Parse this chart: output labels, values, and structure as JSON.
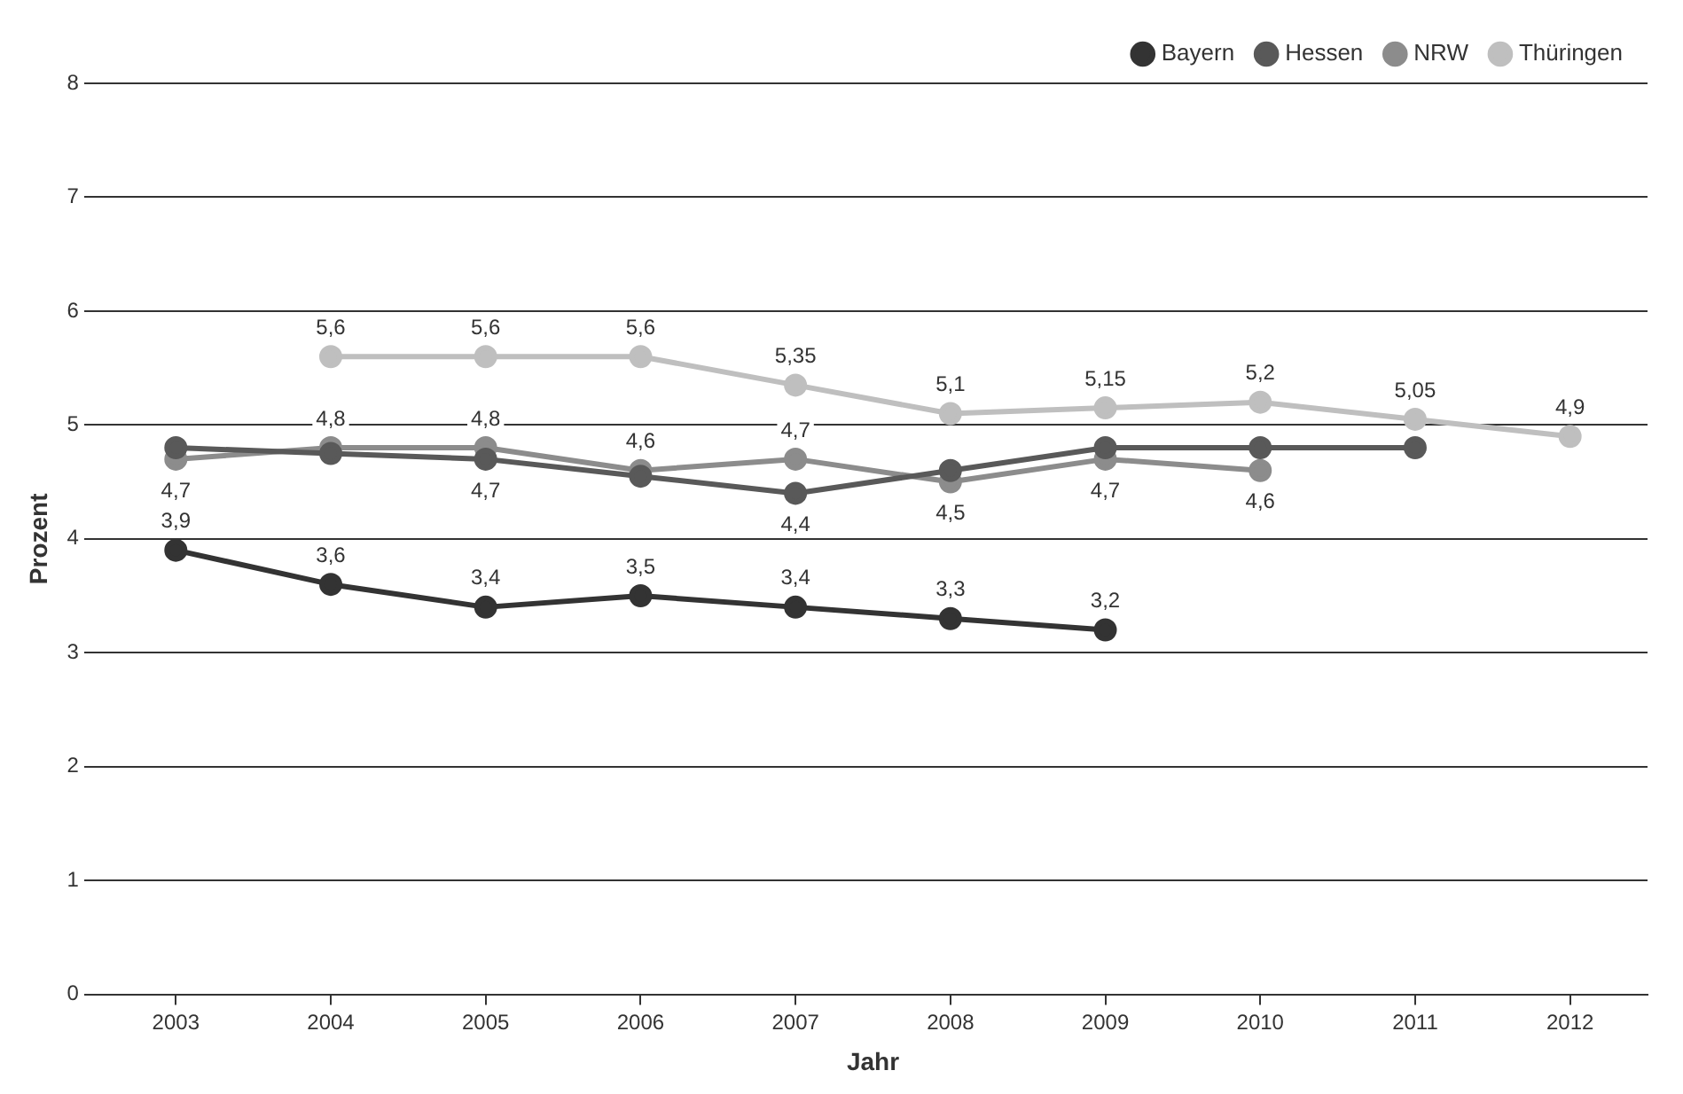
{
  "chart_data": {
    "type": "line",
    "xlabel": "Jahr",
    "ylabel": "Prozent",
    "categories": [
      "2003",
      "2004",
      "2005",
      "2006",
      "2007",
      "2008",
      "2009",
      "2010",
      "2011",
      "2012"
    ],
    "ylim": [
      0,
      8
    ],
    "yticks": [
      0,
      1,
      2,
      3,
      4,
      5,
      6,
      7,
      8
    ],
    "grid": "y",
    "legend": "top right",
    "marker": "circle",
    "line_style": "solid",
    "series": [
      {
        "name": "Bayern",
        "color": "#333333",
        "values": [
          3.9,
          3.6,
          3.4,
          3.5,
          3.4,
          3.3,
          3.2,
          null,
          null,
          null
        ],
        "value_labels": [
          "3,9",
          "3,6",
          "3,4",
          "3,5",
          "3,4",
          "3,3",
          "3,2",
          null,
          null,
          null
        ]
      },
      {
        "name": "Hessen",
        "color": "#595959",
        "values": [
          4.8,
          4.75,
          4.7,
          4.55,
          4.4,
          4.6,
          4.8,
          4.8,
          4.8,
          null
        ],
        "value_labels": [
          null,
          null,
          "4,7",
          null,
          "4,4",
          null,
          null,
          null,
          null,
          null
        ]
      },
      {
        "name": "NRW",
        "color": "#8c8c8c",
        "values": [
          4.7,
          4.8,
          4.8,
          4.6,
          4.7,
          4.5,
          4.7,
          4.6,
          null,
          null
        ],
        "value_labels": [
          "4,7",
          "4,8",
          "4,8",
          "4,6",
          "4,7",
          "4,5",
          "4,7",
          "4,6",
          null,
          null
        ]
      },
      {
        "name": "Thüringen",
        "color": "#bfbfbf",
        "values": [
          null,
          5.6,
          5.6,
          5.6,
          5.35,
          5.1,
          5.15,
          5.2,
          5.05,
          4.9
        ],
        "value_labels": [
          null,
          "5,6",
          "5,6",
          "5,6",
          "5,35",
          "5,1",
          "5,15",
          "5,2",
          "5,05",
          "4,9"
        ]
      }
    ]
  }
}
